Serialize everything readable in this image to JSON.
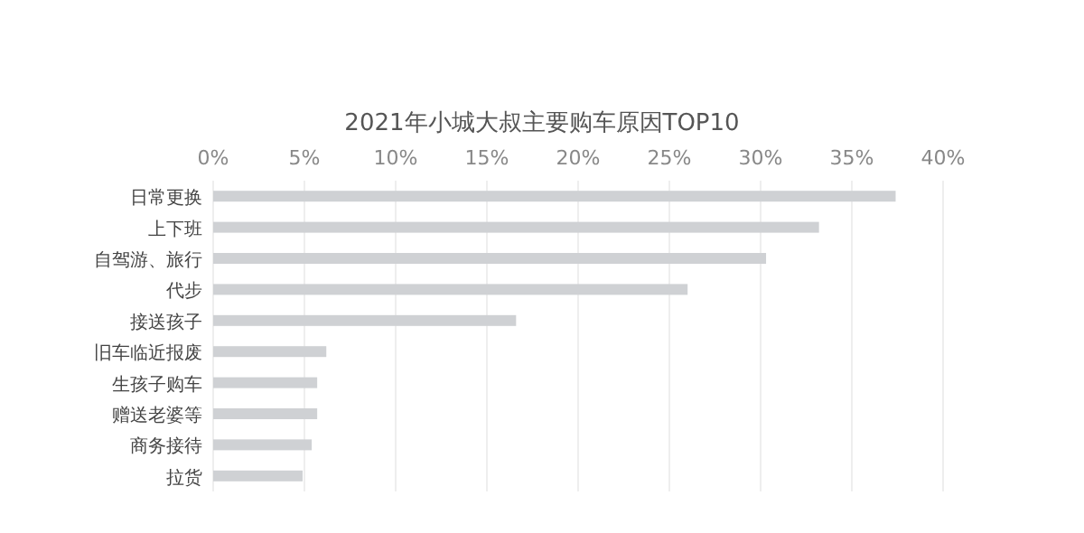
{
  "chart_data": {
    "type": "bar",
    "orientation": "horizontal",
    "title": "2021年小城大叔主要购车原因TOP10",
    "categories": [
      "日常更换",
      "上下班",
      "自驾游、旅行",
      "代步",
      "接送孩子",
      "旧车临近报废",
      "生孩子购车",
      "赠送老婆等",
      "商务接待",
      "拉货"
    ],
    "values": [
      37.4,
      33.2,
      30.3,
      26.0,
      16.6,
      6.2,
      5.7,
      5.7,
      5.4,
      4.9
    ],
    "color": "#cfd1d4",
    "xlim": [
      0,
      40
    ],
    "xticks": [
      {
        "value": 0,
        "label": "0%"
      },
      {
        "value": 5,
        "label": "5%"
      },
      {
        "value": 10,
        "label": "10%"
      },
      {
        "value": 15,
        "label": "15%"
      },
      {
        "value": 20,
        "label": "20%"
      },
      {
        "value": 25,
        "label": "25%"
      },
      {
        "value": 30,
        "label": "30%"
      },
      {
        "value": 35,
        "label": "35%"
      },
      {
        "value": 40,
        "label": "40%"
      }
    ],
    "grid": "x"
  }
}
